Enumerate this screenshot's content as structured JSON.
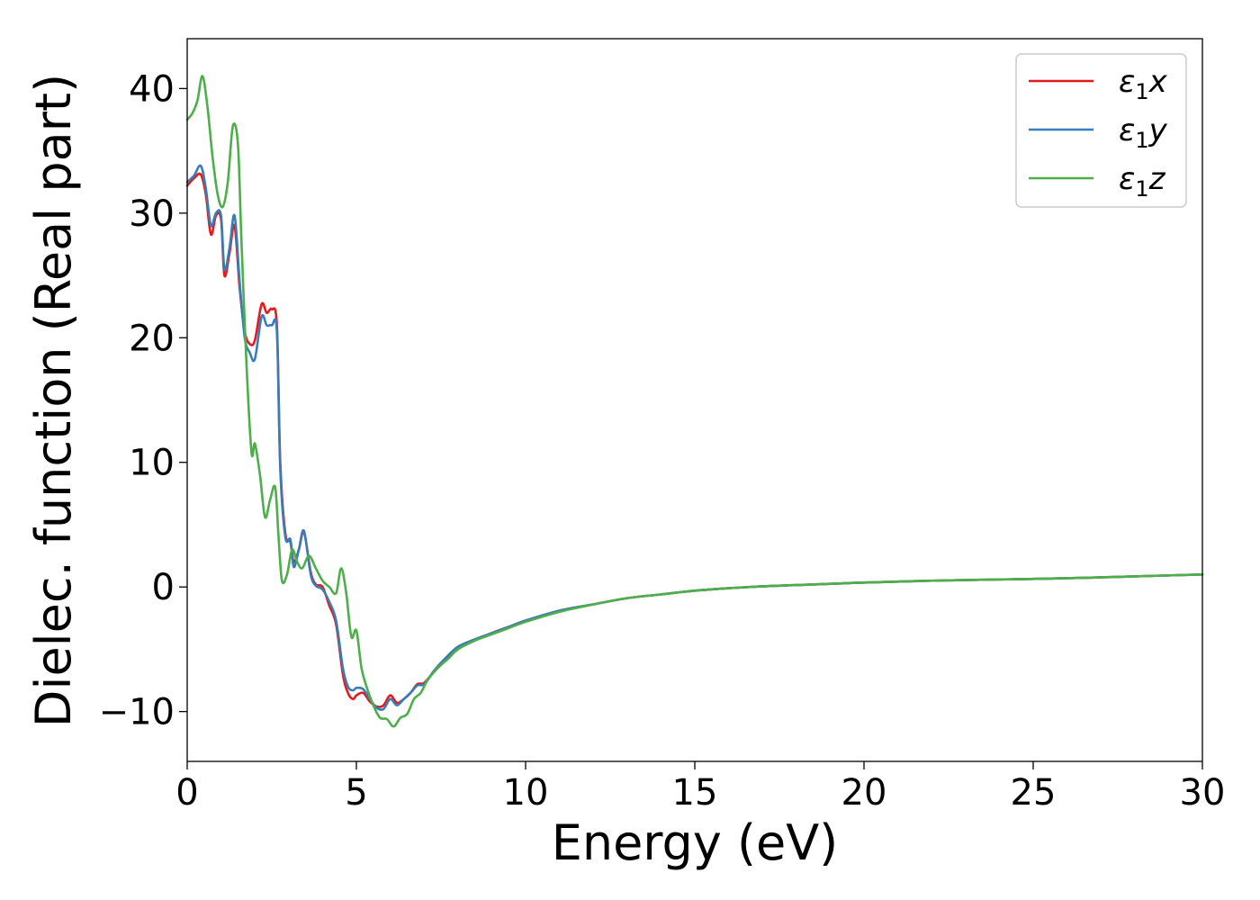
{
  "chart_data": {
    "type": "line",
    "xlabel": "Energy (eV)",
    "ylabel": "Dielec. function (Real part)",
    "xlim": [
      0,
      30
    ],
    "ylim": [
      -14,
      44
    ],
    "xticks": [
      0,
      5,
      10,
      15,
      20,
      25,
      30
    ],
    "yticks": [
      -10,
      0,
      10,
      20,
      30,
      40
    ],
    "xtick_labels": [
      "0",
      "5",
      "10",
      "15",
      "20",
      "25",
      "30"
    ],
    "ytick_labels": [
      "−10",
      "0",
      "10",
      "20",
      "30",
      "40"
    ],
    "grid": false,
    "legend_position": "top-right",
    "series": [
      {
        "name": "ε₁x",
        "name_main": "ε",
        "name_sub": "1",
        "name_tail": "x",
        "color": "#e41a1c",
        "x": [
          0,
          0.2,
          0.4,
          0.55,
          0.7,
          0.85,
          1.0,
          1.1,
          1.25,
          1.4,
          1.55,
          1.7,
          1.85,
          2.0,
          2.2,
          2.35,
          2.5,
          2.65,
          2.75,
          2.9,
          3.05,
          3.15,
          3.3,
          3.45,
          3.65,
          3.8,
          4.0,
          4.2,
          4.4,
          4.6,
          4.75,
          4.9,
          5.0,
          5.2,
          5.4,
          5.6,
          5.8,
          6.0,
          6.2,
          6.4,
          6.6,
          6.8,
          7.0,
          7.3,
          7.6,
          8.0,
          8.5,
          9.0,
          9.5,
          10,
          11,
          12,
          13,
          14,
          15,
          16,
          17,
          18,
          19,
          20,
          22,
          24,
          26,
          28,
          30
        ],
        "y": [
          32.2,
          32.8,
          33.1,
          31.5,
          28.3,
          29.8,
          29.5,
          25.0,
          26.8,
          29.0,
          24.0,
          20.5,
          19.5,
          19.8,
          22.7,
          22.0,
          22.3,
          21.0,
          10.0,
          4.3,
          3.6,
          2.0,
          3.0,
          4.4,
          1.2,
          0.2,
          0.0,
          -1.5,
          -3.0,
          -7.0,
          -8.5,
          -9.0,
          -8.7,
          -8.5,
          -9.2,
          -9.6,
          -9.5,
          -8.7,
          -9.3,
          -9.0,
          -8.5,
          -7.8,
          -7.7,
          -6.8,
          -6.0,
          -5.0,
          -4.3,
          -3.7,
          -3.2,
          -2.7,
          -1.9,
          -1.4,
          -0.9,
          -0.6,
          -0.3,
          -0.1,
          0.05,
          0.15,
          0.25,
          0.35,
          0.5,
          0.6,
          0.7,
          0.85,
          1.0
        ]
      },
      {
        "name": "ε₁y",
        "name_main": "ε",
        "name_sub": "1",
        "name_tail": "y",
        "color": "#377eb8",
        "x": [
          0,
          0.2,
          0.4,
          0.55,
          0.7,
          0.85,
          1.0,
          1.1,
          1.25,
          1.4,
          1.55,
          1.7,
          1.85,
          2.0,
          2.2,
          2.35,
          2.5,
          2.65,
          2.75,
          2.9,
          3.05,
          3.15,
          3.3,
          3.45,
          3.65,
          3.8,
          4.0,
          4.2,
          4.4,
          4.6,
          4.75,
          4.9,
          5.0,
          5.2,
          5.4,
          5.6,
          5.8,
          6.0,
          6.2,
          6.4,
          6.6,
          6.8,
          7.0,
          7.3,
          7.6,
          8.0,
          8.5,
          9.0,
          9.5,
          10,
          11,
          12,
          13,
          14,
          15,
          16,
          17,
          18,
          19,
          20,
          22,
          24,
          26,
          28,
          30
        ],
        "y": [
          32.5,
          33.0,
          33.8,
          32.0,
          29.0,
          30.0,
          29.8,
          25.5,
          27.2,
          29.8,
          24.5,
          20.0,
          18.8,
          18.3,
          21.7,
          21.0,
          21.0,
          20.5,
          9.5,
          4.0,
          3.8,
          1.6,
          3.0,
          4.5,
          1.0,
          0.1,
          -0.2,
          -1.2,
          -2.7,
          -6.5,
          -8.0,
          -8.3,
          -8.1,
          -8.2,
          -9.0,
          -9.7,
          -9.8,
          -9.0,
          -9.5,
          -9.0,
          -8.5,
          -7.9,
          -7.8,
          -6.7,
          -5.8,
          -4.8,
          -4.2,
          -3.7,
          -3.2,
          -2.7,
          -1.9,
          -1.4,
          -0.9,
          -0.6,
          -0.3,
          -0.1,
          0.05,
          0.15,
          0.25,
          0.35,
          0.5,
          0.6,
          0.7,
          0.85,
          1.0
        ]
      },
      {
        "name": "ε₁z",
        "name_main": "ε",
        "name_sub": "1",
        "name_tail": "z",
        "color": "#4daf4a",
        "x": [
          0,
          0.15,
          0.3,
          0.45,
          0.6,
          0.75,
          0.9,
          1.05,
          1.2,
          1.35,
          1.5,
          1.6,
          1.75,
          1.9,
          2.0,
          2.15,
          2.3,
          2.45,
          2.6,
          2.7,
          2.8,
          2.95,
          3.1,
          3.25,
          3.4,
          3.6,
          3.8,
          4.0,
          4.2,
          4.4,
          4.55,
          4.7,
          4.85,
          5.0,
          5.15,
          5.3,
          5.5,
          5.7,
          5.9,
          6.1,
          6.3,
          6.5,
          6.7,
          6.9,
          7.1,
          7.4,
          7.7,
          8.0,
          8.5,
          9.0,
          9.5,
          10,
          11,
          12,
          13,
          14,
          15,
          16,
          17,
          18,
          19,
          20,
          22,
          24,
          26,
          28,
          30
        ],
        "y": [
          37.5,
          38.0,
          39.0,
          41.0,
          38.5,
          34.5,
          31.5,
          30.5,
          32.5,
          37.0,
          35.5,
          28.0,
          18.0,
          10.8,
          11.5,
          9.0,
          5.6,
          7.0,
          8.0,
          4.0,
          0.5,
          1.0,
          3.0,
          2.0,
          1.5,
          2.5,
          1.5,
          0.5,
          0.0,
          -0.5,
          1.5,
          -0.5,
          -4.0,
          -3.5,
          -6.5,
          -8.0,
          -9.5,
          -10.5,
          -10.6,
          -11.2,
          -10.5,
          -10.2,
          -9.0,
          -8.5,
          -7.5,
          -6.5,
          -5.8,
          -5.0,
          -4.3,
          -3.8,
          -3.3,
          -2.8,
          -2.0,
          -1.4,
          -0.9,
          -0.6,
          -0.3,
          -0.1,
          0.05,
          0.15,
          0.25,
          0.35,
          0.5,
          0.6,
          0.7,
          0.85,
          1.0
        ]
      }
    ]
  }
}
